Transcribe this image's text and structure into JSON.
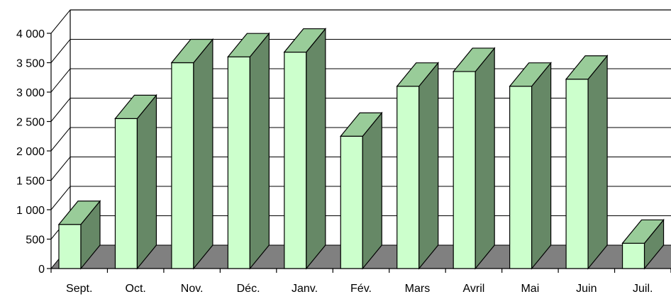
{
  "chart_data": {
    "type": "bar",
    "categories": [
      "Sept.",
      "Oct.",
      "Nov.",
      "Déc.",
      "Janv.",
      "Fév.",
      "Mars",
      "Avril",
      "Mai",
      "Juin",
      "Juil."
    ],
    "values": [
      750,
      2550,
      3500,
      3600,
      3680,
      2250,
      3100,
      3350,
      3100,
      3220,
      430
    ],
    "y_ticks": [
      0,
      500,
      1000,
      1500,
      2000,
      2500,
      3000,
      3500,
      4000
    ],
    "y_tick_labels": [
      "0",
      "500",
      "1 000",
      "1 500",
      "2 000",
      "2 500",
      "3 000",
      "3 500",
      "4 000"
    ],
    "ylim": [
      0,
      4000
    ],
    "style": "3d-columns",
    "grid": true,
    "legend": "none",
    "title": "",
    "xlabel": "",
    "ylabel": "",
    "colors": {
      "bar_front": "#ccffcc",
      "bar_top": "#99cc99",
      "bar_side": "#668866",
      "floor": "#808080",
      "stroke": "#000000"
    }
  }
}
